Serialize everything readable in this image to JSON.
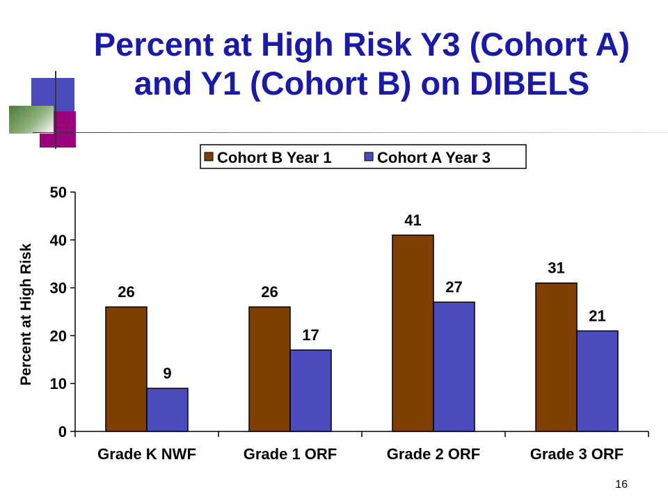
{
  "slide": {
    "title": "Percent at High Risk Y3 (Cohort A) and Y1 (Cohort B) on DIBELS",
    "page_number": "16"
  },
  "colors": {
    "title": "#1a1aa8",
    "cohort_b": "#7f3f00",
    "cohort_a": "#4b4bbd"
  },
  "chart_data": {
    "type": "bar",
    "categories": [
      "Grade K NWF",
      "Grade 1 ORF",
      "Grade 2 ORF",
      "Grade 3 ORF"
    ],
    "series": [
      {
        "name": "Cohort B Year 1",
        "values": [
          26,
          26,
          41,
          31
        ],
        "labels": [
          "26",
          "26",
          "41",
          "31"
        ]
      },
      {
        "name": "Cohort A Year 3",
        "values": [
          9,
          17,
          27,
          21
        ],
        "labels": [
          "9",
          "17",
          "27",
          "21"
        ]
      }
    ],
    "ylabel": "Percent at High Risk",
    "xlabel": "",
    "ylim": [
      0,
      50
    ],
    "yticks": [
      0,
      10,
      20,
      30,
      40,
      50
    ],
    "grid": false,
    "legend_position": "top"
  }
}
